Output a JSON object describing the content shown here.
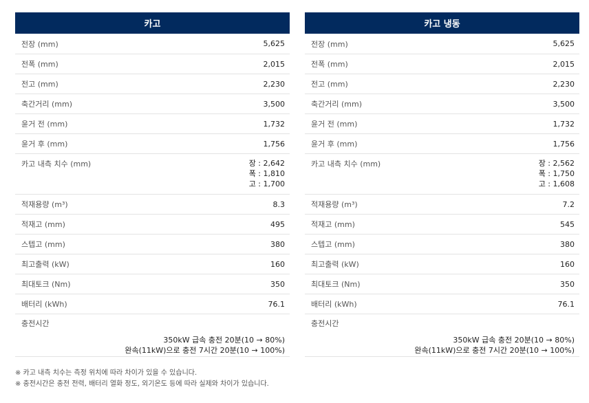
{
  "tables": [
    {
      "title": "카고",
      "rows": [
        {
          "label": "전장 (mm)",
          "value": "5,625"
        },
        {
          "label": "전폭 (mm)",
          "value": "2,015"
        },
        {
          "label": "전고 (mm)",
          "value": "2,230"
        },
        {
          "label": "축간거리 (mm)",
          "value": "3,500"
        },
        {
          "label": "윤거 전 (mm)",
          "value": "1,732"
        },
        {
          "label": "윤거 후 (mm)",
          "value": "1,756"
        }
      ],
      "cargo_dims": {
        "label": "카고 내측 치수 (mm)",
        "length": "장 : 2,642",
        "width": "폭 : 1,810",
        "height": "고 : 1,700"
      },
      "rows2": [
        {
          "label": "적재용량 (m³)",
          "value": "8.3"
        },
        {
          "label": "적재고 (mm)",
          "value": "495"
        },
        {
          "label": "스텝고 (mm)",
          "value": "380"
        },
        {
          "label": "최고출력 (kW)",
          "value": "160"
        },
        {
          "label": "최대토크 (Nm)",
          "value": "350"
        },
        {
          "label": "배터리 (kWh)",
          "value": "76.1"
        }
      ],
      "charge": {
        "label": "충전시간",
        "fast": "350kW 급속 충전 20분(10 → 80%)",
        "slow": "완속(11kW)으로 충전 7시간 20분(10 → 100%)"
      }
    },
    {
      "title": "카고 냉동",
      "rows": [
        {
          "label": "전장 (mm)",
          "value": "5,625"
        },
        {
          "label": "전폭 (mm)",
          "value": "2,015"
        },
        {
          "label": "전고 (mm)",
          "value": "2,230"
        },
        {
          "label": "축간거리 (mm)",
          "value": "3,500"
        },
        {
          "label": "윤거 전 (mm)",
          "value": "1,732"
        },
        {
          "label": "윤거 후 (mm)",
          "value": "1,756"
        }
      ],
      "cargo_dims": {
        "label": "카고 내측 치수 (mm)",
        "length": "장 : 2,562",
        "width": "폭 : 1,750",
        "height": "고 : 1,608"
      },
      "rows2": [
        {
          "label": "적재용량 (m³)",
          "value": "7.2"
        },
        {
          "label": "적재고 (mm)",
          "value": "545"
        },
        {
          "label": "스텝고 (mm)",
          "value": "380"
        },
        {
          "label": "최고출력 (kW)",
          "value": "160"
        },
        {
          "label": "최대토크 (Nm)",
          "value": "350"
        },
        {
          "label": "배터리 (kWh)",
          "value": "76.1"
        }
      ],
      "charge": {
        "label": "충전시간",
        "fast": "350kW 급속 충전 20분(10 → 80%)",
        "slow": "완속(11kW)으로 충전 7시간 20분(10 → 100%)"
      }
    }
  ],
  "notes": [
    "※ 카고 내측 치수는 측정 위치에 따라 차이가 있을 수 있습니다.",
    "※ 충전시간은 충전 전력, 배터리 열화 정도, 외기온도 등에 따라 실제와 차이가 있습니다."
  ],
  "colors": {
    "header_bg": "#022a5e",
    "header_text": "#ffffff",
    "row_border": "#e3e3e3"
  }
}
